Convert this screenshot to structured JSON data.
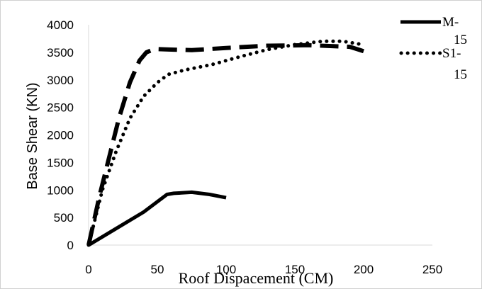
{
  "chart_data": {
    "type": "line",
    "xlabel": "Roof Dispacement (CM)",
    "ylabel": "Base Shear (KN)",
    "xlim": [
      0,
      250
    ],
    "ylim": [
      0,
      4000
    ],
    "x_ticks": [
      "0",
      "50",
      "100",
      "150",
      "200",
      "250"
    ],
    "y_ticks": [
      "0",
      "500",
      "1000",
      "1500",
      "2000",
      "2500",
      "3000",
      "3500",
      "4000"
    ],
    "grid": false,
    "legend_position": "top-right",
    "legend_labels": [
      {
        "line1": "M-",
        "line2": "15"
      },
      {
        "line1": "S1-",
        "line2": "15"
      }
    ],
    "series": [
      {
        "name": "M-15",
        "style": "solid",
        "points": [
          [
            0,
            0
          ],
          [
            20,
            300
          ],
          [
            40,
            600
          ],
          [
            57,
            920
          ],
          [
            62,
            940
          ],
          [
            75,
            960
          ],
          [
            88,
            920
          ],
          [
            100,
            860
          ]
        ]
      },
      {
        "style": "dashed",
        "points": [
          [
            0,
            0
          ],
          [
            8,
            900
          ],
          [
            15,
            1600
          ],
          [
            22,
            2300
          ],
          [
            30,
            2950
          ],
          [
            37,
            3350
          ],
          [
            42,
            3500
          ],
          [
            48,
            3560
          ],
          [
            60,
            3550
          ],
          [
            75,
            3540
          ],
          [
            100,
            3580
          ],
          [
            130,
            3620
          ],
          [
            160,
            3630
          ],
          [
            190,
            3600
          ],
          [
            200,
            3520
          ]
        ]
      },
      {
        "name": "S1-15",
        "style": "dotted",
        "points": [
          [
            0,
            0
          ],
          [
            5,
            500
          ],
          [
            10,
            1000
          ],
          [
            20,
            1700
          ],
          [
            30,
            2300
          ],
          [
            40,
            2700
          ],
          [
            50,
            2950
          ],
          [
            58,
            3100
          ],
          [
            70,
            3180
          ],
          [
            90,
            3280
          ],
          [
            110,
            3420
          ],
          [
            130,
            3550
          ],
          [
            150,
            3640
          ],
          [
            170,
            3700
          ],
          [
            185,
            3700
          ],
          [
            197,
            3650
          ]
        ]
      }
    ]
  }
}
